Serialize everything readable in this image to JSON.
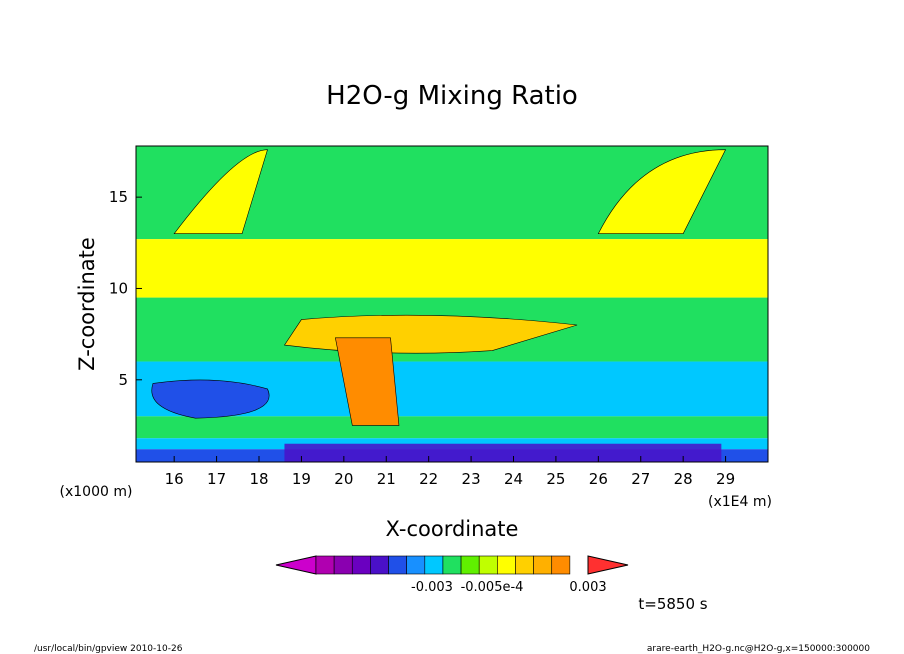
{
  "chart_data": {
    "type": "heatmap",
    "title": "H2O-g Mixing Ratio",
    "xlabel": "X-coordinate",
    "ylabel": "Z-coordinate",
    "x_unit_left": "(x1000 m)",
    "x_unit_right": "(x1E4 m)",
    "x_ticks": [
      "16",
      "17",
      "18",
      "19",
      "20",
      "21",
      "22",
      "23",
      "24",
      "25",
      "26",
      "27",
      "28",
      "29"
    ],
    "y_ticks": [
      "5",
      "10",
      "15"
    ],
    "xlim": [
      15.1,
      30.0
    ],
    "ylim": [
      0.5,
      17.8
    ],
    "colorbar": {
      "colors": [
        "#cc00cc",
        "#b000b0",
        "#8a00b0",
        "#6a00c0",
        "#4a10c8",
        "#2050e8",
        "#1890ff",
        "#00c8ff",
        "#20e060",
        "#60f000",
        "#c0ff00",
        "#ffff00",
        "#ffd000",
        "#ffb000",
        "#ff8c00",
        "#ff3030"
      ],
      "labels": [
        "-0.003",
        "-0.005e-4",
        "0.003"
      ]
    },
    "bands": [
      {
        "from": 12.7,
        "to": 17.8,
        "color": "#20e060"
      },
      {
        "from": 9.5,
        "to": 12.7,
        "color": "#ffff00"
      },
      {
        "from": 6.0,
        "to": 9.5,
        "color": "#20e060"
      },
      {
        "from": 3.0,
        "to": 6.0,
        "color": "#00c8ff"
      },
      {
        "from": 1.8,
        "to": 3.0,
        "color": "#20e060"
      },
      {
        "from": 1.2,
        "to": 1.8,
        "color": "#00c8ff"
      },
      {
        "from": 0.5,
        "to": 1.2,
        "color": "#2050e8"
      }
    ]
  },
  "annotations": {
    "time": "t=5850 s",
    "footer_left": "/usr/local/bin/gpview  2010-10-26",
    "footer_right": "arare-earth_H2O-g.nc@H2O-g,x=150000:300000"
  }
}
